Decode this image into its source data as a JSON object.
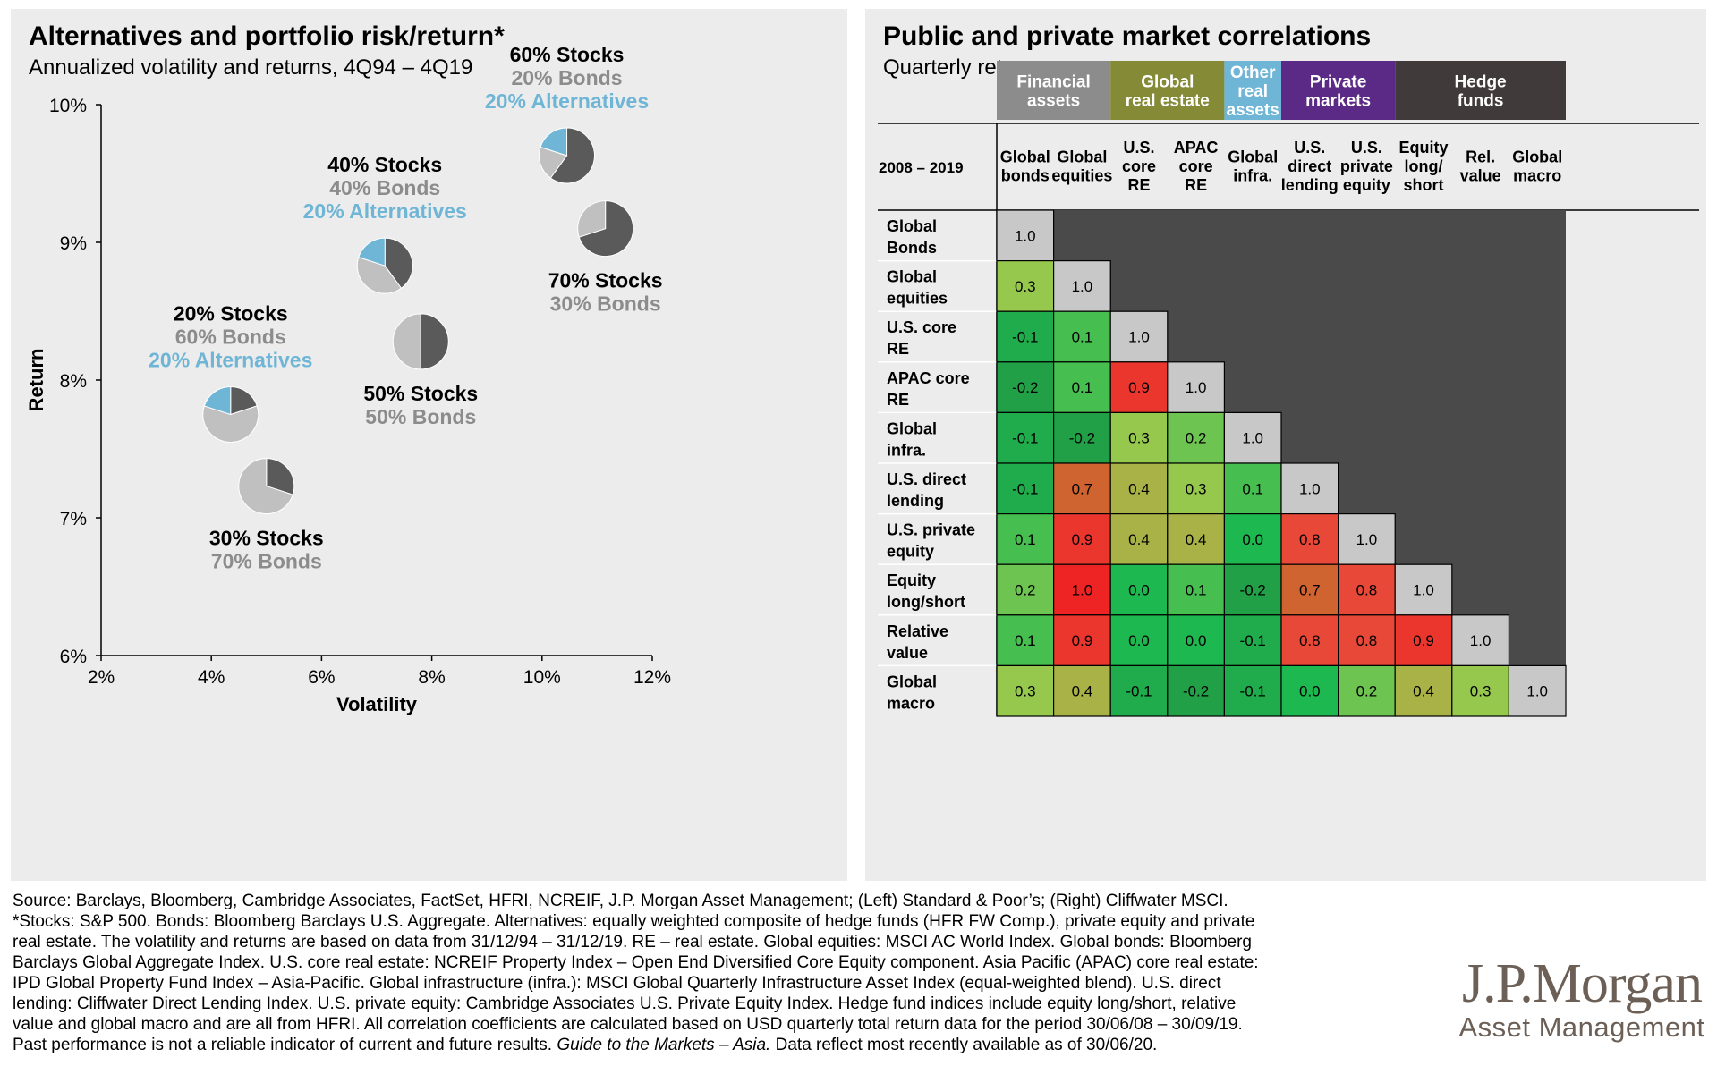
{
  "left": {
    "title": "Alternatives and portfolio risk/return*",
    "subtitle": "Annualized volatility and returns, 4Q94 – 4Q19"
  },
  "right": {
    "title": "Public and private market correlations",
    "subtitle": "Quarterly returns"
  },
  "chart_data": [
    {
      "type": "scatter",
      "title": "Alternatives and portfolio risk/return*",
      "subtitle": "Annualized volatility and returns, 4Q94 – 4Q19",
      "xlabel": "Volatility",
      "ylabel": "Return",
      "xlim": [
        2,
        12
      ],
      "ylim": [
        6,
        10
      ],
      "x_ticks": [
        "2%",
        "4%",
        "6%",
        "8%",
        "10%",
        "12%"
      ],
      "y_ticks": [
        "6%",
        "7%",
        "8%",
        "9%",
        "10%"
      ],
      "grid": false,
      "colors": {
        "stocks": "#5a5a5a",
        "bonds": "#c0c0c0",
        "alternatives": "#6eb5d6"
      },
      "points": [
        {
          "x": 5.0,
          "y": 7.23,
          "stocks": 30,
          "bonds": 70,
          "alternatives": 0,
          "label": [
            "30% Stocks",
            "70% Bonds"
          ],
          "label_pos": "below"
        },
        {
          "x": 4.35,
          "y": 7.75,
          "stocks": 20,
          "bonds": 60,
          "alternatives": 20,
          "label": [
            "20% Stocks",
            "60% Bonds",
            "20% Alternatives"
          ],
          "label_pos": "above"
        },
        {
          "x": 7.8,
          "y": 8.28,
          "stocks": 50,
          "bonds": 50,
          "alternatives": 0,
          "label": [
            "50% Stocks",
            "50% Bonds"
          ],
          "label_pos": "below"
        },
        {
          "x": 7.15,
          "y": 8.83,
          "stocks": 40,
          "bonds": 40,
          "alternatives": 20,
          "label": [
            "40% Stocks",
            "40% Bonds",
            "20% Alternatives"
          ],
          "label_pos": "above"
        },
        {
          "x": 11.15,
          "y": 9.1,
          "stocks": 70,
          "bonds": 30,
          "alternatives": 0,
          "label": [
            "70% Stocks",
            "30% Bonds"
          ],
          "label_pos": "below"
        },
        {
          "x": 10.45,
          "y": 9.63,
          "stocks": 60,
          "bonds": 20,
          "alternatives": 20,
          "label": [
            "60% Stocks",
            "20% Bonds",
            "20% Alternatives"
          ],
          "label_pos": "above"
        }
      ]
    },
    {
      "type": "heatmap",
      "title": "Public and private market correlations",
      "subtitle": "Quarterly returns",
      "period_label": "2008 – 2019",
      "groups": [
        {
          "name": "Financial assets",
          "lines": [
            "Financial",
            "assets"
          ],
          "span": 2,
          "color": "#8c8c8c"
        },
        {
          "name": "Global real estate",
          "lines": [
            "Global",
            "real estate"
          ],
          "span": 2,
          "color": "#858a36"
        },
        {
          "name": "Other real assets",
          "lines": [
            "Other",
            "real",
            "assets"
          ],
          "span": 1,
          "color": "#6eb5d6"
        },
        {
          "name": "Private markets",
          "lines": [
            "Private",
            "markets"
          ],
          "span": 2,
          "color": "#5b2a86"
        },
        {
          "name": "Hedge funds",
          "lines": [
            "Hedge",
            "funds"
          ],
          "span": 3,
          "color": "#403b3a"
        }
      ],
      "columns": [
        [
          "Global",
          "bonds"
        ],
        [
          "Global",
          "equities"
        ],
        [
          "U.S.",
          "core",
          "RE"
        ],
        [
          "APAC",
          "core",
          "RE"
        ],
        [
          "Global",
          "infra."
        ],
        [
          "U.S.",
          "direct",
          "lending"
        ],
        [
          "U.S.",
          "private",
          "equity"
        ],
        [
          "Equity",
          "long/",
          "short"
        ],
        [
          "Rel.",
          "value"
        ],
        [
          "Global",
          "macro"
        ]
      ],
      "rows": [
        [
          "Global",
          "Bonds"
        ],
        [
          "Global",
          "equities"
        ],
        [
          "U.S. core",
          "RE"
        ],
        [
          "APAC core",
          "RE"
        ],
        [
          "Global",
          "infra."
        ],
        [
          "U.S. direct",
          "lending"
        ],
        [
          "U.S. private",
          "equity"
        ],
        [
          "Equity",
          "long/short"
        ],
        [
          "Relative",
          "value"
        ],
        [
          "Global",
          "macro"
        ]
      ],
      "values": [
        [
          1.0
        ],
        [
          0.3,
          1.0
        ],
        [
          -0.1,
          0.1,
          1.0
        ],
        [
          -0.2,
          0.1,
          0.9,
          1.0
        ],
        [
          -0.1,
          -0.2,
          0.3,
          0.2,
          1.0
        ],
        [
          -0.1,
          0.7,
          0.4,
          0.3,
          0.1,
          1.0
        ],
        [
          0.1,
          0.9,
          0.4,
          0.4,
          0.0,
          0.8,
          1.0
        ],
        [
          0.2,
          1.0,
          0.0,
          0.1,
          -0.2,
          0.7,
          0.8,
          1.0
        ],
        [
          0.1,
          0.9,
          0.0,
          0.0,
          -0.1,
          0.8,
          0.8,
          0.9,
          1.0
        ],
        [
          0.3,
          0.4,
          -0.1,
          -0.2,
          -0.1,
          0.0,
          0.2,
          0.4,
          0.3,
          1.0
        ]
      ]
    }
  ],
  "footnotes": [
    "Source: Barclays, Bloomberg, Cambridge Associates, FactSet, HFRI, NCREIF, J.P. Morgan Asset Management; (Left) Standard & Poor’s; (Right) Cliffwater MSCI.",
    "*Stocks: S&P 500. Bonds: Bloomberg Barclays U.S. Aggregate. Alternatives: equally weighted composite of hedge funds (HFR FW Comp.), private equity and private",
    "real estate. The volatility and returns are based on data from 31/12/94 – 31/12/19. RE – real estate. Global equities: MSCI AC World Index. Global bonds: Bloomberg",
    "Barclays Global Aggregate Index. U.S. core real estate: NCREIF Property Index – Open End Diversified Core Equity component. Asia Pacific (APAC) core real estate:",
    "IPD Global Property Fund Index – Asia-Pacific. Global infrastructure (infra.): MSCI Global Quarterly Infrastructure Asset Index (equal-weighted blend). U.S. direct",
    "lending: Cliffwater Direct Lending Index. U.S. private equity: Cambridge Associates U.S. Private Equity Index. Hedge fund indices include equity long/short, relative",
    "value and global macro and are all from HFRI. All correlation coefficients are calculated based on USD quarterly total return data for the period 30/06/08 – 30/09/19."
  ],
  "footnote_last": {
    "prefix": "Past performance is not a reliable indicator of current and future results. ",
    "italic": "Guide to the Markets – Asia.",
    "suffix": " Data reflect most recently available as of 30/06/20."
  },
  "logo": {
    "main": "J.P.Morgan",
    "sub": "Asset Management"
  }
}
